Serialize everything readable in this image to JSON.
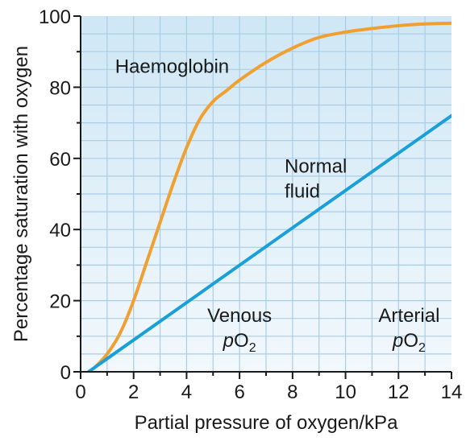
{
  "chart_data": {
    "type": "line",
    "title": "",
    "xlabel": "Partial pressure of oxygen/kPa",
    "ylabel": "Percentage saturation with oxygen",
    "xlim": [
      0,
      14
    ],
    "ylim": [
      0,
      100
    ],
    "x_ticks": [
      "0",
      "2",
      "4",
      "6",
      "8",
      "10",
      "12",
      "14"
    ],
    "y_ticks": [
      "0",
      "20",
      "40",
      "60",
      "80",
      "100"
    ],
    "grid": true,
    "colors": {
      "plot_background_top": "#cfe7f5",
      "plot_background_bottom": "#f2f8fc",
      "grid": "#a9cde6",
      "haemoglobin": "#f0a030",
      "normal_fluid": "#1aa0d8",
      "axis": "#1a1a1a"
    },
    "series": [
      {
        "name": "Haemoglobin",
        "color": "#f0a030",
        "x": [
          0.5,
          1,
          1.5,
          2,
          2.5,
          3,
          3.5,
          4,
          4.5,
          5,
          5.5,
          6,
          7,
          8,
          9,
          10,
          11,
          12,
          13,
          14
        ],
        "y": [
          1,
          5,
          11,
          20,
          31,
          42,
          53,
          63,
          71,
          76,
          79,
          82,
          87,
          91,
          94,
          95.5,
          96.5,
          97.3,
          97.8,
          98
        ]
      },
      {
        "name": "Normal fluid",
        "color": "#1aa0d8",
        "x": [
          0.3,
          14
        ],
        "y": [
          0,
          72
        ]
      }
    ],
    "annotations": [
      {
        "id": "haemoglobin",
        "lines": [
          "Haemoglobin"
        ],
        "x": 1.3,
        "y": 84
      },
      {
        "id": "normal_fluid",
        "lines": [
          "Normal",
          "fluid"
        ],
        "x": 7.7,
        "y": 56
      },
      {
        "id": "venous",
        "lines": [
          "Venous"
        ],
        "p": "p",
        "o": "O",
        "sub": "2",
        "x": 6,
        "y": 14
      },
      {
        "id": "arterial",
        "lines": [
          "Arterial"
        ],
        "p": "p",
        "o": "O",
        "sub": "2",
        "x": 12.4,
        "y": 14
      }
    ]
  }
}
